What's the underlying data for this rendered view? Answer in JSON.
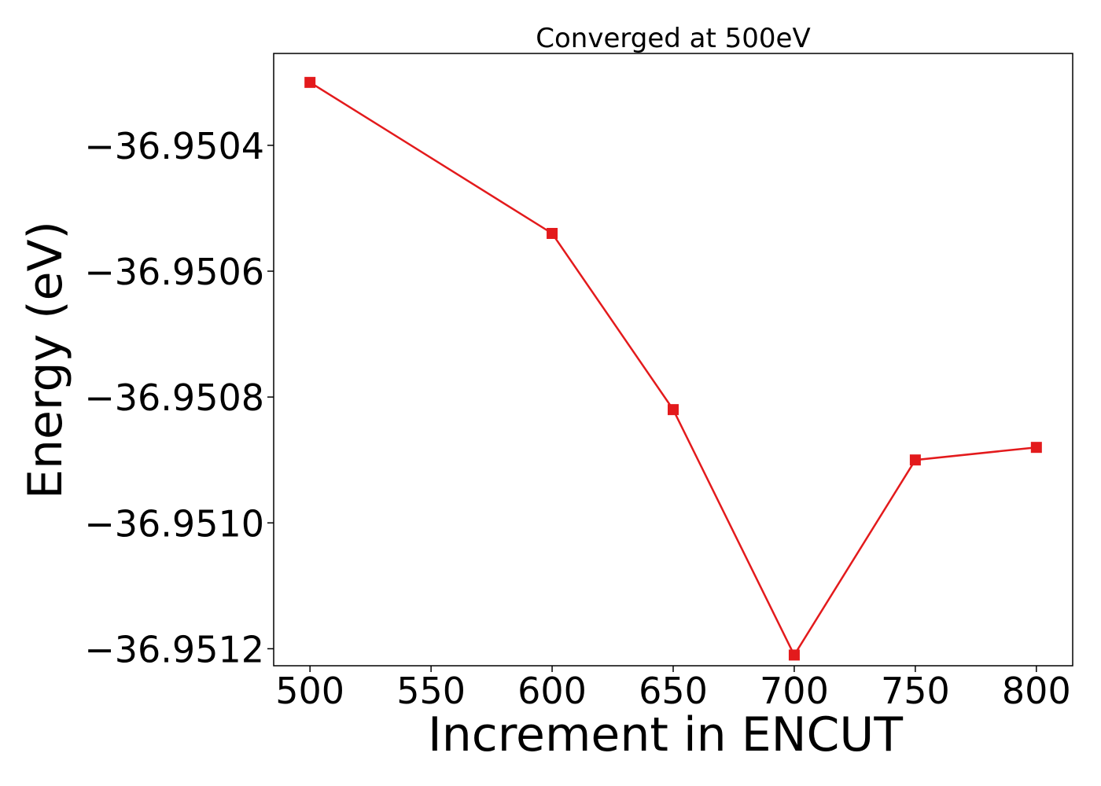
{
  "chart_data": {
    "type": "line",
    "title": "Converged at 500eV",
    "xlabel": "Increment in ENCUT",
    "ylabel": "Energy (eV)",
    "x": [
      500,
      600,
      650,
      700,
      750,
      800
    ],
    "series": [
      {
        "values": [
          -36.9503,
          -36.95054,
          -36.95082,
          -36.95121,
          -36.9509,
          -36.95088
        ],
        "color": "#e31a1c",
        "marker": "square"
      }
    ],
    "xticks": [
      500,
      550,
      600,
      650,
      700,
      750,
      800
    ],
    "xtick_labels": [
      "500",
      "550",
      "600",
      "650",
      "700",
      "750",
      "800"
    ],
    "yticks": [
      -36.9504,
      -36.9506,
      -36.9508,
      -36.951,
      -36.9512
    ],
    "ytick_labels": [
      "−36.9504",
      "−36.9506",
      "−36.9508",
      "−36.9510",
      "−36.9512"
    ],
    "xlim": [
      485,
      815
    ],
    "ylim": [
      -36.951227,
      -36.950254
    ],
    "grid": false,
    "legend": false
  }
}
